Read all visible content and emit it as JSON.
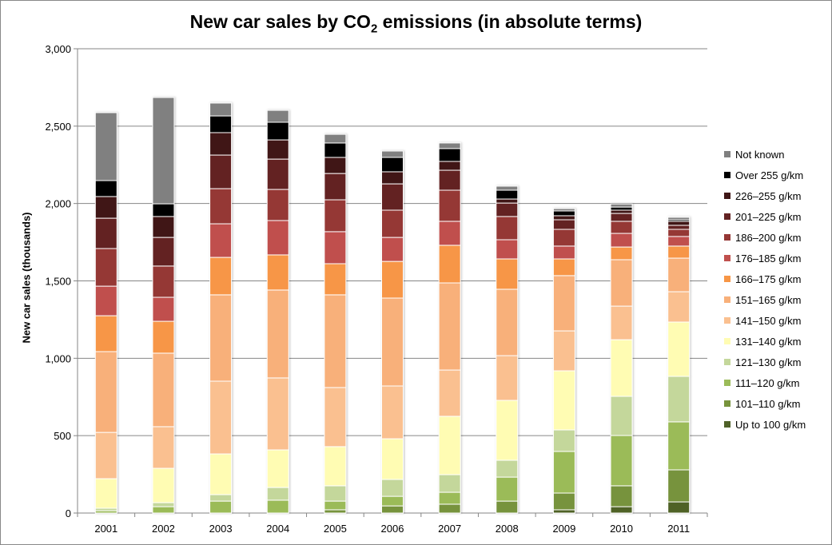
{
  "chart_data": {
    "type": "bar",
    "stacked": true,
    "title_parts": [
      "New car sales by CO",
      "2",
      " emissions (in absolute terms)"
    ],
    "xlabel": "",
    "ylabel": "New car sales (thousands)",
    "ylim": [
      0,
      3000
    ],
    "yticks": [
      "0",
      "500",
      "1,000",
      "1,500",
      "2,000",
      "2,500",
      "3,000"
    ],
    "ytick_values": [
      0,
      500,
      1000,
      1500,
      2000,
      2500,
      3000
    ],
    "grid": true,
    "legend_position": "right",
    "categories": [
      "2001",
      "2002",
      "2003",
      "2004",
      "2005",
      "2006",
      "2007",
      "2008",
      "2009",
      "2010",
      "2011"
    ],
    "series": [
      {
        "name": "Up to 100 g/km",
        "color": "#4F6228",
        "values": [
          0,
          0,
          0,
          0,
          0,
          0,
          0,
          0,
          21,
          41,
          72
        ]
      },
      {
        "name": "101–110 g/km",
        "color": "#77933C",
        "values": [
          0,
          0,
          0,
          0,
          21,
          46,
          57,
          77,
          108,
          135,
          207
        ]
      },
      {
        "name": "111–120 g/km",
        "color": "#9BBB59",
        "values": [
          15,
          41,
          77,
          83,
          56,
          62,
          77,
          155,
          269,
          325,
          310
        ]
      },
      {
        "name": "121–130 g/km",
        "color": "#C4D79B",
        "values": [
          16,
          26,
          42,
          82,
          99,
          109,
          114,
          109,
          139,
          253,
          294
        ]
      },
      {
        "name": "131–140 g/km",
        "color": "#FFFCB3",
        "values": [
          191,
          222,
          263,
          243,
          253,
          263,
          377,
          387,
          382,
          366,
          351
        ]
      },
      {
        "name": "141–150 g/km",
        "color": "#FAC090",
        "values": [
          299,
          269,
          470,
          465,
          382,
          341,
          299,
          289,
          258,
          217,
          196
        ]
      },
      {
        "name": "151–165 g/km",
        "color": "#F8B07A",
        "values": [
          522,
          475,
          558,
          568,
          599,
          568,
          563,
          429,
          357,
          300,
          217
        ]
      },
      {
        "name": "166–175 g/km",
        "color": "#F79646",
        "values": [
          232,
          206,
          242,
          227,
          201,
          237,
          243,
          196,
          108,
          82,
          78
        ]
      },
      {
        "name": "176–185 g/km",
        "color": "#C0504D",
        "values": [
          191,
          155,
          217,
          222,
          207,
          155,
          155,
          124,
          83,
          88,
          62
        ]
      },
      {
        "name": "186–200 g/km",
        "color": "#953735",
        "values": [
          243,
          202,
          227,
          201,
          206,
          176,
          201,
          150,
          108,
          78,
          46
        ]
      },
      {
        "name": "201–225 g/km",
        "color": "#632323",
        "values": [
          196,
          185,
          217,
          196,
          170,
          170,
          129,
          87,
          62,
          51,
          26
        ]
      },
      {
        "name": "226–255 g/km",
        "color": "#3F1616",
        "values": [
          140,
          135,
          145,
          124,
          104,
          78,
          57,
          26,
          26,
          21,
          26
        ]
      },
      {
        "name": "Over 255 g/km",
        "color": "#000000",
        "values": [
          103,
          82,
          108,
          114,
          93,
          93,
          83,
          57,
          31,
          20,
          10
        ]
      },
      {
        "name": "Not known",
        "color": "#808080",
        "values": [
          439,
          687,
          83,
          77,
          56,
          41,
          36,
          26,
          15,
          20,
          16
        ]
      }
    ]
  }
}
